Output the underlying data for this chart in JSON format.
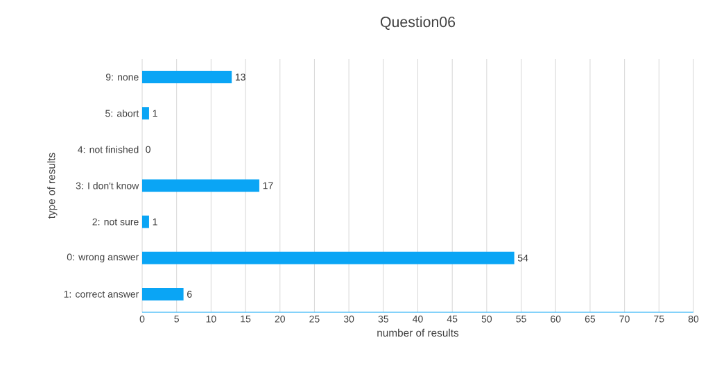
{
  "chart_data": {
    "type": "bar",
    "orientation": "horizontal",
    "title": "Question06",
    "xlabel": "number of results",
    "ylabel": "type of results",
    "categories": [
      "9: none",
      "5: abort",
      "4: not finished",
      "3: I don't know",
      "2: not sure",
      "0: wrong answer",
      "1: correct answer"
    ],
    "values": [
      13,
      1,
      0,
      17,
      1,
      54,
      6
    ],
    "color": "#0aa5f5",
    "xlim": [
      0,
      80
    ],
    "xticks": [
      0,
      5,
      10,
      15,
      20,
      25,
      30,
      35,
      40,
      45,
      50,
      55,
      60,
      65,
      70,
      75,
      80
    ],
    "grid": "x",
    "data_labels": true
  }
}
